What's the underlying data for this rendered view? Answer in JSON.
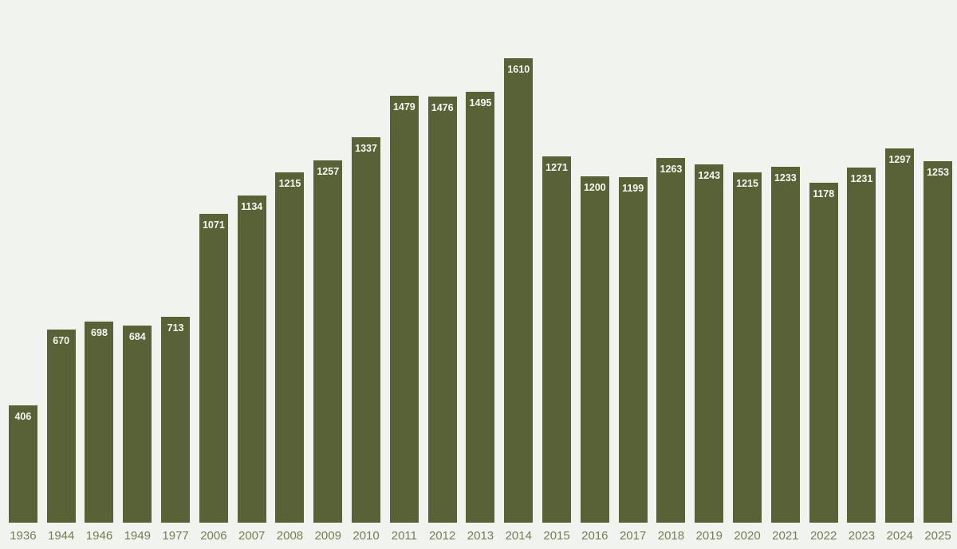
{
  "chart_data": {
    "type": "bar",
    "categories": [
      "1936",
      "1944",
      "1946",
      "1949",
      "1977",
      "2006",
      "2007",
      "2008",
      "2009",
      "2010",
      "2011",
      "2012",
      "2013",
      "2014",
      "2015",
      "2016",
      "2017",
      "2018",
      "2019",
      "2020",
      "2021",
      "2022",
      "2023",
      "2024",
      "2025"
    ],
    "values": [
      406,
      670,
      698,
      684,
      713,
      1071,
      1134,
      1215,
      1257,
      1337,
      1479,
      1476,
      1495,
      1610,
      1271,
      1200,
      1199,
      1263,
      1243,
      1215,
      1233,
      1178,
      1231,
      1297,
      1253
    ],
    "title": "",
    "xlabel": "",
    "ylabel": "",
    "ylim": [
      0,
      1650
    ],
    "grid": false,
    "legend_position": "none",
    "value_labels_shown": true,
    "value_label_position": "inside-top",
    "colors": {
      "bar_fill": "#596137",
      "background": "#f1f3ee",
      "value_label": "#f7f7f2",
      "axis_label": "#757d57"
    }
  }
}
